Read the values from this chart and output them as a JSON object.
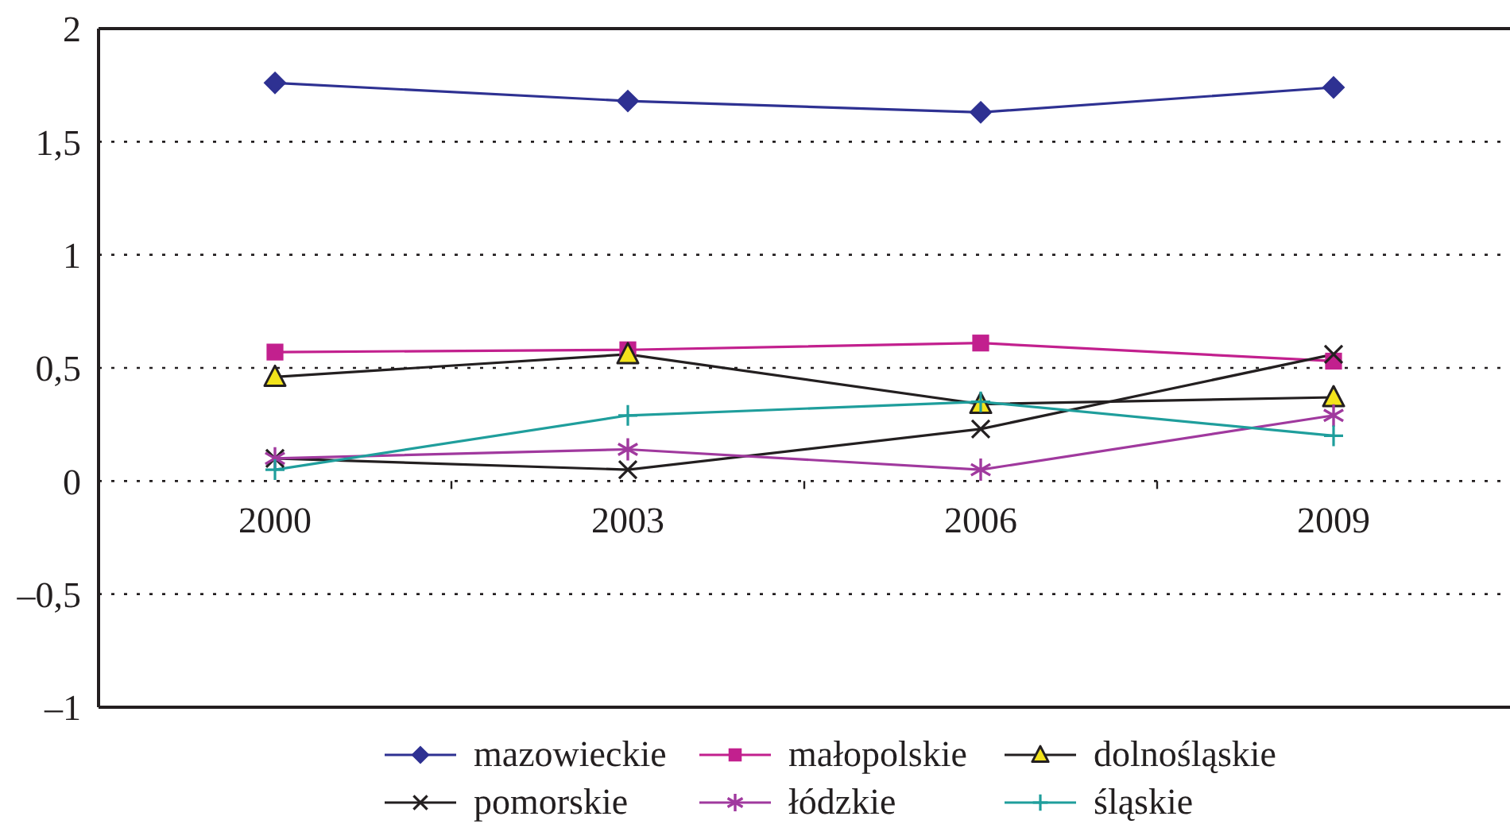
{
  "chart_data": {
    "type": "line",
    "categories": [
      "2000",
      "2003",
      "2006",
      "2009"
    ],
    "series": [
      {
        "name": "mazowieckie",
        "color": "#2e3192",
        "marker": "diamond",
        "values": [
          1.76,
          1.68,
          1.63,
          1.74
        ]
      },
      {
        "name": "małopolskie",
        "color": "#c2208e",
        "marker": "square",
        "values": [
          0.57,
          0.58,
          0.61,
          0.53
        ]
      },
      {
        "name": "dolnośląskie",
        "color": "#231f20",
        "marker": "triangle",
        "colors": [
          "#f2e31b",
          "#f2e31b",
          "#f2e31b",
          "#f2e31b"
        ],
        "values": [
          0.46,
          0.56,
          0.34,
          0.37
        ]
      },
      {
        "name": "pomorskie",
        "color": "#231f20",
        "marker": "cross",
        "values": [
          0.1,
          0.05,
          0.23,
          0.56
        ]
      },
      {
        "name": "łódzkie",
        "color": "#a0399e",
        "marker": "star",
        "values": [
          0.1,
          0.14,
          0.05,
          0.29
        ]
      },
      {
        "name": "śląskie",
        "color": "#1f9e9c",
        "marker": "plus",
        "values": [
          0.05,
          0.29,
          0.35,
          0.2
        ]
      }
    ],
    "ylim": [
      -1,
      2
    ],
    "yticks": [
      {
        "value": -1,
        "label": "–1"
      },
      {
        "value": -0.5,
        "label": "–0,5"
      },
      0,
      {
        "value": 0.5,
        "label": "0,5"
      },
      1,
      {
        "value": 1.5,
        "label": "1,5"
      },
      2
    ],
    "grid": "y",
    "legend": "bottom",
    "line_style": "solid"
  }
}
